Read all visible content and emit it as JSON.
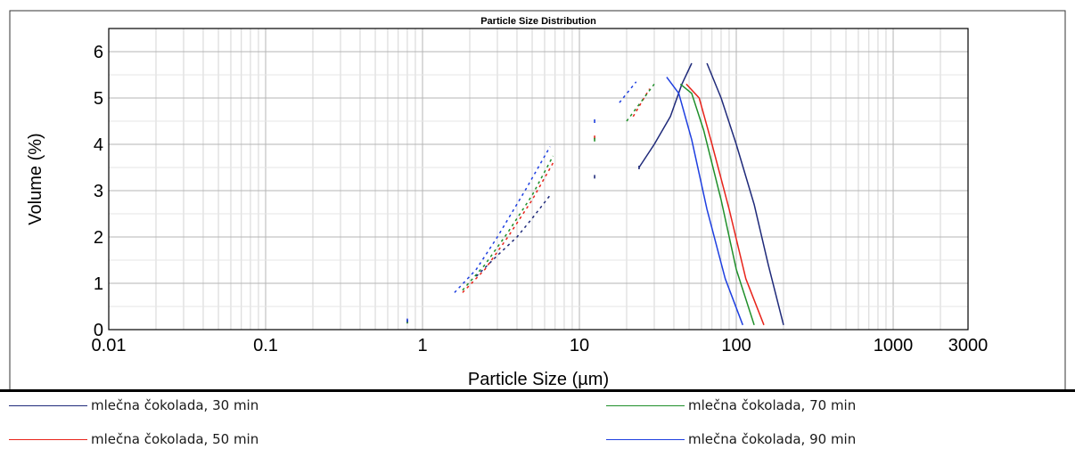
{
  "chart_data": {
    "type": "line",
    "title": "Particle Size Distribution",
    "xlabel": "Particle Size (µm)",
    "ylabel": "Volume (%)",
    "x_scale": "log",
    "xlim": [
      0.01,
      3000
    ],
    "ylim": [
      0,
      6.5
    ],
    "x_ticks": [
      0.01,
      0.1,
      1,
      10,
      100,
      1000,
      3000
    ],
    "x_tick_labels": [
      "0.01",
      "0.1",
      "1",
      "10",
      "100",
      "1000",
      "3000"
    ],
    "y_ticks": [
      0,
      1,
      2,
      3,
      4,
      5,
      6
    ],
    "y_tick_labels": [
      "0",
      "1",
      "2",
      "3",
      "4",
      "5",
      "6"
    ],
    "grid": true,
    "legend_position": "bottom",
    "series": [
      {
        "name": "mlečna čokolada, 30 min",
        "color": "#1f2a7a",
        "segments": [
          {
            "style": "dotted",
            "points": [
              [
                0.8,
                0.2
              ],
              [
                0.8,
                0.16
              ]
            ]
          },
          {
            "style": "dotted",
            "points": [
              [
                2.2,
                1.15
              ],
              [
                3.0,
                1.6
              ],
              [
                4.0,
                2.0
              ],
              [
                5.0,
                2.4
              ],
              [
                6.5,
                2.9
              ]
            ]
          },
          {
            "style": "dotted",
            "points": [
              [
                12.5,
                3.3
              ]
            ]
          },
          {
            "style": "dotted",
            "points": [
              [
                24,
                3.5
              ]
            ]
          },
          {
            "style": "solid",
            "points": [
              [
                24,
                3.5
              ],
              [
                30,
                4.0
              ],
              [
                38,
                4.6
              ],
              [
                45,
                5.3
              ],
              [
                52,
                5.75
              ]
            ]
          },
          {
            "style": "solid",
            "points": [
              [
                65,
                5.75
              ],
              [
                80,
                5.0
              ],
              [
                100,
                4.0
              ],
              [
                130,
                2.7
              ],
              [
                160,
                1.4
              ],
              [
                200,
                0.1
              ]
            ]
          }
        ]
      },
      {
        "name": "mlečna čokolada, 50 min",
        "color": "#e8231a",
        "segments": [
          {
            "style": "dotted",
            "points": [
              [
                0.8,
                0.18
              ]
            ]
          },
          {
            "style": "dotted",
            "points": [
              [
                1.8,
                0.8
              ],
              [
                2.5,
                1.3
              ],
              [
                3.5,
                2.0
              ],
              [
                5.0,
                2.8
              ],
              [
                6.8,
                3.6
              ]
            ]
          },
          {
            "style": "dotted",
            "points": [
              [
                12.5,
                4.15
              ]
            ]
          },
          {
            "style": "dotted",
            "points": [
              [
                22,
                4.6
              ],
              [
                28,
                5.2
              ]
            ]
          },
          {
            "style": "solid",
            "points": [
              [
                48,
                5.3
              ],
              [
                58,
                5.0
              ],
              [
                70,
                4.0
              ],
              [
                90,
                2.6
              ],
              [
                115,
                1.1
              ],
              [
                150,
                0.1
              ]
            ]
          }
        ]
      },
      {
        "name": "mlečna čokolada, 70 min",
        "color": "#1f8f2a",
        "segments": [
          {
            "style": "dotted",
            "points": [
              [
                0.8,
                0.17
              ]
            ]
          },
          {
            "style": "dotted",
            "points": [
              [
                1.8,
                0.85
              ],
              [
                2.5,
                1.4
              ],
              [
                3.5,
                2.1
              ],
              [
                5.0,
                2.9
              ],
              [
                6.8,
                3.75
              ]
            ]
          },
          {
            "style": "dotted",
            "points": [
              [
                12.5,
                4.1
              ]
            ]
          },
          {
            "style": "dotted",
            "points": [
              [
                20,
                4.5
              ],
              [
                30,
                5.3
              ]
            ]
          },
          {
            "style": "solid",
            "points": [
              [
                44,
                5.3
              ],
              [
                52,
                5.1
              ],
              [
                62,
                4.3
              ],
              [
                80,
                2.8
              ],
              [
                100,
                1.3
              ],
              [
                130,
                0.1
              ]
            ]
          }
        ]
      },
      {
        "name": "mlečna čokolada, 90 min",
        "color": "#1e3fe0",
        "segments": [
          {
            "style": "dotted",
            "points": [
              [
                0.8,
                0.2
              ]
            ]
          },
          {
            "style": "dotted",
            "points": [
              [
                1.6,
                0.8
              ],
              [
                2.2,
                1.3
              ],
              [
                3.0,
                2.0
              ],
              [
                4.5,
                3.0
              ],
              [
                6.5,
                3.95
              ]
            ]
          },
          {
            "style": "dotted",
            "points": [
              [
                12.5,
                4.5
              ]
            ]
          },
          {
            "style": "dotted",
            "points": [
              [
                18,
                4.9
              ],
              [
                23,
                5.35
              ]
            ]
          },
          {
            "style": "solid",
            "points": [
              [
                36,
                5.45
              ],
              [
                43,
                5.1
              ],
              [
                52,
                4.1
              ],
              [
                65,
                2.6
              ],
              [
                85,
                1.1
              ],
              [
                110,
                0.1
              ]
            ]
          }
        ]
      }
    ]
  }
}
